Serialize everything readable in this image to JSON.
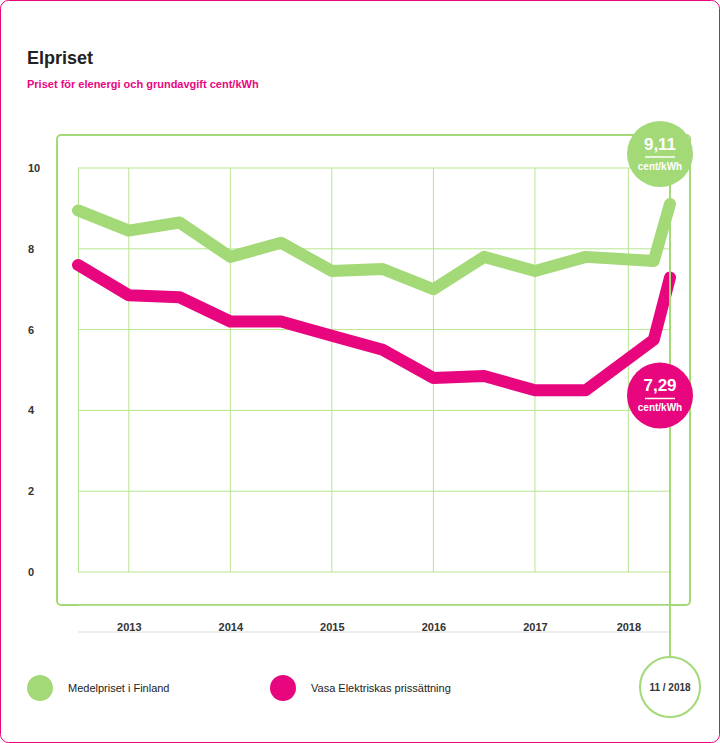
{
  "chart_data": {
    "type": "line",
    "title": "Elpriset",
    "subtitle": "Priset för elenergi och grundavgift cent/kWh",
    "x": [
      2013.0,
      2013.5,
      2014.0,
      2014.5,
      2015.0,
      2015.5,
      2016.0,
      2016.5,
      2017.0,
      2017.5,
      2018.0,
      2018.67,
      2018.83
    ],
    "series": [
      {
        "name": "Medelpriset i Finland",
        "color": "#a3d977",
        "values": [
          8.95,
          8.45,
          8.65,
          7.8,
          8.15,
          7.45,
          7.5,
          7.0,
          7.8,
          7.45,
          7.8,
          7.7,
          9.11
        ]
      },
      {
        "name": "Vasa Elektriskas prissättning",
        "color": "#e8067f",
        "values": [
          7.6,
          6.85,
          6.8,
          6.2,
          6.2,
          5.85,
          5.5,
          4.8,
          4.85,
          4.5,
          4.5,
          5.75,
          7.29
        ]
      }
    ],
    "xlim": [
      2013.0,
      2018.83
    ],
    "xticks": [
      {
        "value": 2013.5,
        "label": "2013"
      },
      {
        "value": 2014.5,
        "label": "2014"
      },
      {
        "value": 2015.5,
        "label": "2015"
      },
      {
        "value": 2016.5,
        "label": "2016"
      },
      {
        "value": 2017.5,
        "label": "2017"
      },
      {
        "value": 2018.42,
        "label": "2018"
      }
    ],
    "ylim": [
      0,
      10
    ],
    "yticks": [
      0,
      2,
      4,
      6,
      8,
      10
    ],
    "grid": true,
    "legend": "bottom",
    "annotations": [
      {
        "label": "9,11",
        "unit": "cent/kWh",
        "value": 9.11,
        "x": 2018.83
      },
      {
        "label": "7,29",
        "unit": "cent/kWh",
        "value": 7.29,
        "x": 2018.83
      },
      {
        "label": "11 / 2018",
        "x": 2018.83
      }
    ]
  }
}
